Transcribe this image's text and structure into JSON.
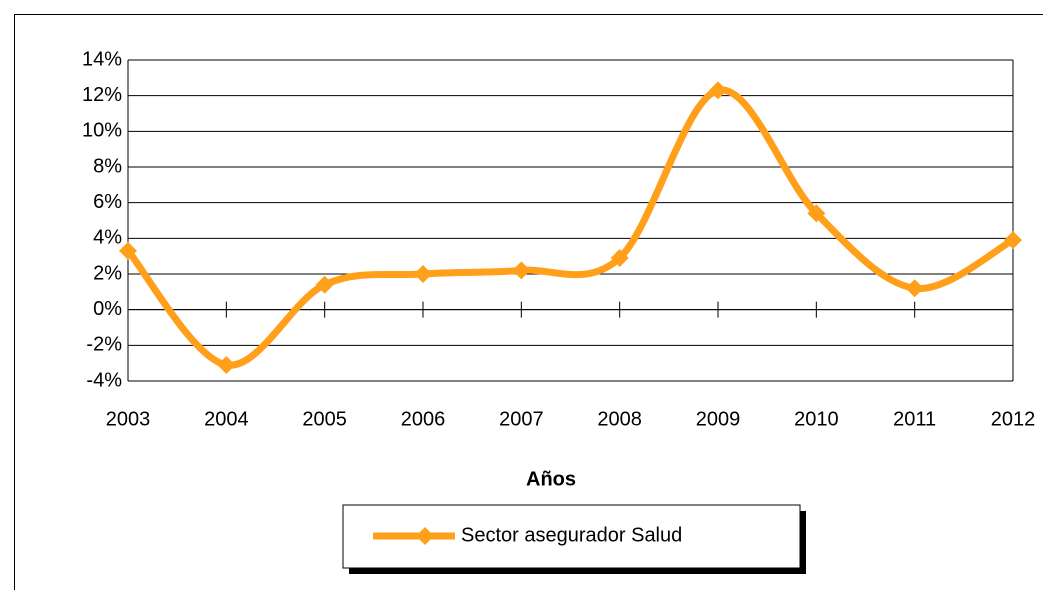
{
  "chart_data": {
    "type": "line",
    "x_label": "Años",
    "categories": [
      "2003",
      "2004",
      "2005",
      "2006",
      "2007",
      "2008",
      "2009",
      "2010",
      "2011",
      "2012"
    ],
    "series": [
      {
        "name": "Sector asegurador Salud",
        "color": "#ff9f1a",
        "values": [
          3.3,
          -3.1,
          1.4,
          2.0,
          2.2,
          2.9,
          12.3,
          5.4,
          1.2,
          3.9
        ]
      }
    ],
    "ylim": [
      -4,
      14
    ],
    "yticks": [
      {
        "value": -4,
        "label": "-4%"
      },
      {
        "value": -2,
        "label": "-2%"
      },
      {
        "value": 0,
        "label": "0%"
      },
      {
        "value": 2,
        "label": "2%"
      },
      {
        "value": 4,
        "label": "4%"
      },
      {
        "value": 6,
        "label": "6%"
      },
      {
        "value": 8,
        "label": "8%"
      },
      {
        "value": 10,
        "label": "10%"
      },
      {
        "value": 12,
        "label": "12%"
      },
      {
        "value": 14,
        "label": "14%"
      }
    ],
    "grid": true,
    "smooth": true,
    "legend": "bottom"
  }
}
